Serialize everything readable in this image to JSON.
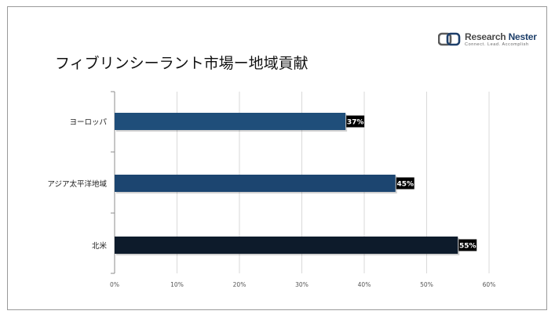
{
  "header": {
    "title": "フィブリンシーラント市場ー地域貢献"
  },
  "logo": {
    "name_part1": "Research",
    "name_part2": "Nester",
    "tagline": "Connect. Lead. Accomplish",
    "icon": "research-nester-logo-icon"
  },
  "colors": {
    "bar_europe": "#1f4e7a",
    "bar_apac": "#1c4570",
    "bar_na": "#0d1b2b",
    "label_bg": "#000000",
    "label_text": "#ffffff",
    "grid": "#d9d9d9",
    "axis": "#8c8c8c"
  },
  "chart_data": {
    "type": "bar",
    "orientation": "horizontal",
    "categories": [
      "ヨーロッパ",
      "アジア太平洋地域",
      "北米"
    ],
    "values": [
      37,
      45,
      55
    ],
    "data_labels": [
      "37%",
      "45%",
      "55%"
    ],
    "xlim": [
      0,
      60
    ],
    "x_ticks": [
      "0%",
      "10%",
      "20%",
      "30%",
      "40%",
      "50%",
      "60%"
    ],
    "grid": true,
    "legend": "none"
  }
}
